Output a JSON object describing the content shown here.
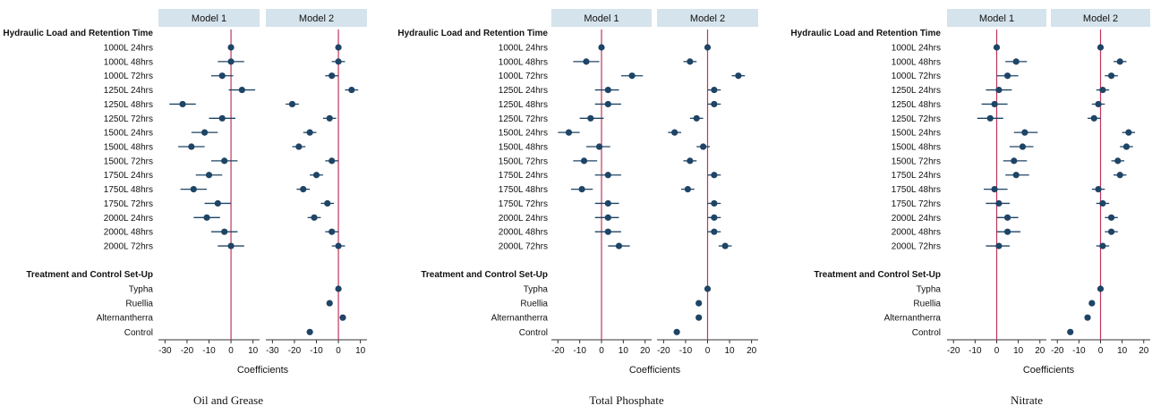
{
  "chart_data": [
    {
      "type": "scatter",
      "title": "Oil and Grease",
      "xlabel": "Coefficients",
      "xlim": [
        -33,
        13
      ],
      "xticks": [
        -30,
        -20,
        -10,
        0,
        10
      ],
      "panels": [
        "Model 1",
        "Model 2"
      ],
      "group_headers": [
        "Hydraulic Load and Retention Time",
        "Treatment and Control Set-Up"
      ],
      "categories_group1": [
        "1000L 24hrs",
        "1000L 48hrs",
        "1000L 72hrs",
        "1250L 24hrs",
        "1250L 48hrs",
        "1250L 72hrs",
        "1500L 24hrs",
        "1500L 48hrs",
        "1500L 72hrs",
        "1750L 24hrs",
        "1750L 48hrs",
        "1750L 72hrs",
        "2000L 24hrs",
        "2000L 48hrs",
        "2000L 72hrs"
      ],
      "categories_group2": [
        "Typha",
        "Ruellia",
        "Alternantherra",
        "Control"
      ],
      "series": [
        {
          "name": "Model 1",
          "group1": [
            [
              0,
              0,
              0
            ],
            [
              0,
              -6,
              6
            ],
            [
              -4,
              -9,
              1
            ],
            [
              5,
              -1,
              11
            ],
            [
              -22,
              -28,
              -16
            ],
            [
              -4,
              -10,
              2
            ],
            [
              -12,
              -18,
              -6
            ],
            [
              -18,
              -24,
              -12
            ],
            [
              -3,
              -9,
              3
            ],
            [
              -10,
              -16,
              -4
            ],
            [
              -17,
              -23,
              -11
            ],
            [
              -6,
              -12,
              0
            ],
            [
              -11,
              -17,
              -5
            ],
            [
              -3,
              -9,
              3
            ],
            [
              0,
              -6,
              6
            ]
          ],
          "group2": []
        },
        {
          "name": "Model 2",
          "group1": [
            [
              0,
              0,
              0
            ],
            [
              0,
              -3,
              3
            ],
            [
              -3,
              -6,
              0
            ],
            [
              6,
              3,
              9
            ],
            [
              -21,
              -24,
              -18
            ],
            [
              -4,
              -7,
              -1
            ],
            [
              -13,
              -16,
              -10
            ],
            [
              -18,
              -21,
              -15
            ],
            [
              -3,
              -6,
              0
            ],
            [
              -10,
              -13,
              -7
            ],
            [
              -16,
              -19,
              -13
            ],
            [
              -5,
              -8,
              -2
            ],
            [
              -11,
              -14,
              -8
            ],
            [
              -3,
              -6,
              0
            ],
            [
              0,
              -3,
              3
            ]
          ],
          "group2": [
            [
              0,
              0,
              0
            ],
            [
              -4,
              -5,
              -3
            ],
            [
              2,
              1,
              3
            ],
            [
              -13,
              -14,
              -12
            ]
          ]
        }
      ]
    },
    {
      "type": "scatter",
      "title": "Total Phosphate",
      "xlabel": "Coefficients",
      "xlim": [
        -23,
        23
      ],
      "xticks": [
        -20,
        -10,
        0,
        10,
        20
      ],
      "panels": [
        "Model 1",
        "Model 2"
      ],
      "group_headers": [
        "Hydraulic Load and Retention Time",
        "Treatment and Control Set-Up"
      ],
      "categories_group1": [
        "1000L 24hrs",
        "1000L 48hrs",
        "1000L 72hrs",
        "1250L 24hrs",
        "1250L 48hrs",
        "1250L 72hrs",
        "1500L 24hrs",
        "1500L 48hrs",
        "1500L 72hrs",
        "1750L 24hrs",
        "1750L 48hrs",
        "1750L 72hrs",
        "2000L 24hrs",
        "2000L 48hrs",
        "2000L 72hrs"
      ],
      "categories_group2": [
        "Typha",
        "Ruellia",
        "Alternantherra",
        "Control"
      ],
      "series": [
        {
          "name": "Model 1",
          "group1": [
            [
              0,
              0,
              0
            ],
            [
              -7,
              -13,
              -1
            ],
            [
              14,
              9,
              19
            ],
            [
              3,
              -3,
              8
            ],
            [
              3,
              -3,
              9
            ],
            [
              -5,
              -10,
              1
            ],
            [
              -15,
              -20,
              -10
            ],
            [
              -1,
              -7,
              4
            ],
            [
              -8,
              -13,
              -2
            ],
            [
              3,
              -3,
              9
            ],
            [
              -9,
              -14,
              -4
            ],
            [
              3,
              -3,
              8
            ],
            [
              3,
              -3,
              8
            ],
            [
              3,
              -3,
              9
            ],
            [
              8,
              3,
              13
            ]
          ],
          "group2": []
        },
        {
          "name": "Model 2",
          "group1": [
            [
              0,
              0,
              0
            ],
            [
              -8,
              -11,
              -5
            ],
            [
              14,
              11,
              17
            ],
            [
              3,
              0,
              6
            ],
            [
              3,
              0,
              6
            ],
            [
              -5,
              -8,
              -2
            ],
            [
              -15,
              -18,
              -12
            ],
            [
              -2,
              -5,
              1
            ],
            [
              -8,
              -11,
              -5
            ],
            [
              3,
              0,
              6
            ],
            [
              -9,
              -12,
              -6
            ],
            [
              3,
              0,
              6
            ],
            [
              3,
              0,
              6
            ],
            [
              3,
              0,
              6
            ],
            [
              8,
              5,
              11
            ]
          ],
          "group2": [
            [
              0,
              0,
              0
            ],
            [
              -4,
              -5,
              -3
            ],
            [
              -4,
              -5,
              -3
            ],
            [
              -14,
              -15,
              -13
            ]
          ]
        }
      ]
    },
    {
      "type": "scatter",
      "title": "Nitrate",
      "xlabel": "Coefficients",
      "xlim": [
        -23,
        23
      ],
      "xticks": [
        -20,
        -10,
        0,
        10,
        20
      ],
      "panels": [
        "Model 1",
        "Model 2"
      ],
      "group_headers": [
        "Hydraulic Load and Retention Time",
        "Treatment and Control Set-Up"
      ],
      "categories_group1": [
        "1000L 24hrs",
        "1000L 48hrs",
        "1000L 72hrs",
        "1250L 24hrs",
        "1250L 48hrs",
        "1250L 72hrs",
        "1500L 24hrs",
        "1500L 48hrs",
        "1500L 72hrs",
        "1750L 24hrs",
        "1750L 48hrs",
        "1750L 72hrs",
        "2000L 24hrs",
        "2000L 48hrs",
        "2000L 72hrs"
      ],
      "categories_group2": [
        "Typha",
        "Ruellia",
        "Alternantherra",
        "Control"
      ],
      "series": [
        {
          "name": "Model 1",
          "group1": [
            [
              0,
              0,
              0
            ],
            [
              9,
              4,
              14
            ],
            [
              5,
              0,
              10
            ],
            [
              1,
              -5,
              7
            ],
            [
              -1,
              -7,
              5
            ],
            [
              -3,
              -9,
              3
            ],
            [
              13,
              8,
              19
            ],
            [
              12,
              6,
              17
            ],
            [
              8,
              3,
              14
            ],
            [
              9,
              4,
              15
            ],
            [
              -1,
              -6,
              5
            ],
            [
              1,
              -5,
              6
            ],
            [
              5,
              0,
              10
            ],
            [
              5,
              0,
              11
            ],
            [
              1,
              -5,
              6
            ]
          ],
          "group2": []
        },
        {
          "name": "Model 2",
          "group1": [
            [
              0,
              0,
              0
            ],
            [
              9,
              6,
              12
            ],
            [
              5,
              2,
              8
            ],
            [
              1,
              -2,
              4
            ],
            [
              -1,
              -4,
              2
            ],
            [
              -3,
              -6,
              0
            ],
            [
              13,
              10,
              16
            ],
            [
              12,
              9,
              15
            ],
            [
              8,
              5,
              11
            ],
            [
              9,
              6,
              12
            ],
            [
              -1,
              -4,
              2
            ],
            [
              1,
              -2,
              4
            ],
            [
              5,
              2,
              8
            ],
            [
              5,
              2,
              8
            ],
            [
              1,
              -2,
              4
            ]
          ],
          "group2": [
            [
              0,
              0,
              0
            ],
            [
              -4,
              -5,
              -3
            ],
            [
              -6,
              -7,
              -5
            ],
            [
              -14,
              -15,
              -13
            ]
          ]
        }
      ]
    }
  ],
  "colors": {
    "header_fill": "#d5e3ec",
    "marker": "#1e4466",
    "ci_line": "#1e4466",
    "zero_line": "#c0365c",
    "axis": "#333333"
  }
}
